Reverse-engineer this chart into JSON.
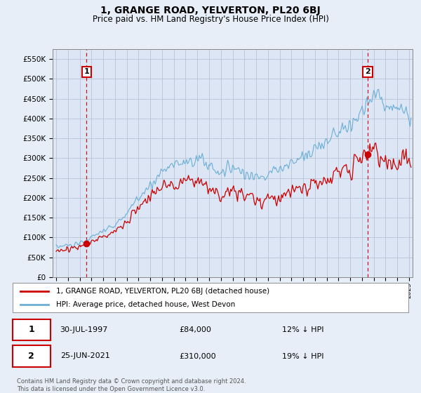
{
  "title": "1, GRANGE ROAD, YELVERTON, PL20 6BJ",
  "subtitle": "Price paid vs. HM Land Registry's House Price Index (HPI)",
  "legend_line1": "1, GRANGE ROAD, YELVERTON, PL20 6BJ (detached house)",
  "legend_line2": "HPI: Average price, detached house, West Devon",
  "sale1_label": "1",
  "sale1_date": "30-JUL-1997",
  "sale1_price": "£84,000",
  "sale1_hpi": "12% ↓ HPI",
  "sale2_label": "2",
  "sale2_date": "25-JUN-2021",
  "sale2_price": "£310,000",
  "sale2_hpi": "19% ↓ HPI",
  "footer": "Contains HM Land Registry data © Crown copyright and database right 2024.\nThis data is licensed under the Open Government Licence v3.0.",
  "hpi_color": "#6baed6",
  "price_color": "#cc0000",
  "marker_color": "#cc0000",
  "dashed_line_color": "#cc0000",
  "background_color": "#e8eef8",
  "plot_bg_color": "#dce6f5",
  "legend_bg": "#ffffff",
  "ylim": [
    0,
    575000
  ],
  "yticks": [
    0,
    50000,
    100000,
    150000,
    200000,
    250000,
    300000,
    350000,
    400000,
    450000,
    500000,
    550000
  ],
  "sale1_x": 1997.58,
  "sale1_y": 84000,
  "sale2_x": 2021.48,
  "sale2_y": 310000,
  "xlim_left": 1995.0,
  "xlim_right": 2025.3
}
